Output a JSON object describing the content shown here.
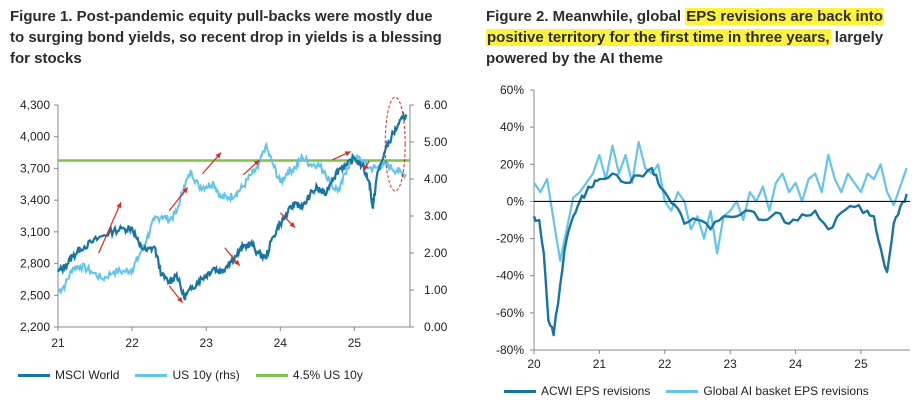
{
  "figure1": {
    "title_lines": [
      "Figure 1. Post-pandemic equity pull-backs were mostly due",
      "to surging bond yields, so recent drop in yields is a blessing",
      "for stocks"
    ],
    "legend": [
      "MSCI World",
      "US 10y (rhs)",
      "4.5% US 10y"
    ]
  },
  "figure2": {
    "title_line1_pre": "Figure 2. Meanwhile, global ",
    "title_line1_hl": "EPS revisions are back into",
    "title_line2_hl": "positive territory for the first time in three years,",
    "title_line2_post": " largely",
    "title_line3": "powered by the AI theme",
    "legend": [
      "ACWI EPS revisions",
      "Global AI basket EPS revisions"
    ]
  },
  "colors": {
    "dark": "#1874a3",
    "light": "#63c4ec",
    "green": "#7dc24b",
    "arrow": "#e1261c",
    "axis": "#888888"
  },
  "chart_data": [
    {
      "type": "line",
      "title": "Figure 1. Post-pandemic equity pull-backs were mostly due to surging bond yields, so recent drop in yields is a blessing for stocks",
      "x_ticks": [
        "21",
        "22",
        "23",
        "24",
        "25"
      ],
      "xlim": [
        2021.0,
        2025.75
      ],
      "y_left_ticks": [
        "2,200",
        "2,500",
        "2,800",
        "3,100",
        "3,400",
        "3,700",
        "4,000",
        "4,300"
      ],
      "ylim_left": [
        2200,
        4300
      ],
      "y_right_ticks": [
        "0.00",
        "1.00",
        "2.00",
        "3.00",
        "4.00",
        "5.00",
        "6.00"
      ],
      "ylim_right": [
        0,
        6
      ],
      "series": [
        {
          "name": "MSCI World",
          "axis": "left",
          "x": [
            2021.0,
            2021.1,
            2021.2,
            2021.3,
            2021.45,
            2021.6,
            2021.75,
            2021.9,
            2022.0,
            2022.1,
            2022.2,
            2022.3,
            2022.4,
            2022.5,
            2022.6,
            2022.7,
            2022.8,
            2022.9,
            2023.0,
            2023.1,
            2023.2,
            2023.3,
            2023.4,
            2023.5,
            2023.6,
            2023.7,
            2023.8,
            2023.9,
            2024.0,
            2024.1,
            2024.2,
            2024.3,
            2024.4,
            2024.5,
            2024.6,
            2024.7,
            2024.8,
            2024.9,
            2025.0,
            2025.1,
            2025.2,
            2025.25,
            2025.3,
            2025.4,
            2025.5,
            2025.6,
            2025.7
          ],
          "values": [
            2720,
            2780,
            2870,
            2940,
            3000,
            3060,
            3110,
            3130,
            3140,
            2970,
            2920,
            2960,
            2690,
            2620,
            2700,
            2480,
            2560,
            2640,
            2690,
            2760,
            2720,
            2800,
            2870,
            2960,
            2990,
            2900,
            2850,
            3050,
            3180,
            3280,
            3380,
            3330,
            3450,
            3520,
            3450,
            3600,
            3700,
            3730,
            3800,
            3730,
            3580,
            3320,
            3620,
            3840,
            4000,
            4120,
            4210
          ]
        },
        {
          "name": "US 10y (rhs)",
          "axis": "right",
          "x": [
            2021.0,
            2021.1,
            2021.2,
            2021.3,
            2021.45,
            2021.6,
            2021.75,
            2021.9,
            2022.0,
            2022.1,
            2022.2,
            2022.3,
            2022.4,
            2022.5,
            2022.6,
            2022.7,
            2022.8,
            2022.9,
            2023.0,
            2023.1,
            2023.2,
            2023.3,
            2023.4,
            2023.5,
            2023.6,
            2023.7,
            2023.8,
            2023.9,
            2024.0,
            2024.1,
            2024.2,
            2024.3,
            2024.4,
            2024.5,
            2024.6,
            2024.7,
            2024.8,
            2024.9,
            2025.0,
            2025.1,
            2025.2,
            2025.3,
            2025.4,
            2025.5,
            2025.6,
            2025.7
          ],
          "values": [
            0.95,
            1.15,
            1.6,
            1.65,
            1.5,
            1.3,
            1.5,
            1.5,
            1.55,
            1.95,
            2.4,
            2.9,
            3.0,
            2.9,
            3.1,
            3.8,
            4.2,
            3.8,
            3.8,
            3.9,
            3.5,
            3.5,
            3.6,
            3.8,
            4.1,
            4.3,
            4.9,
            4.4,
            3.9,
            4.2,
            4.3,
            4.6,
            4.4,
            4.4,
            4.2,
            3.8,
            3.7,
            4.3,
            4.6,
            4.5,
            4.3,
            4.3,
            4.4,
            4.3,
            4.2,
            4.1
          ]
        },
        {
          "name": "4.5% US 10y",
          "axis": "right",
          "x": [
            2021.0,
            2025.75
          ],
          "values": [
            4.5,
            4.5
          ]
        }
      ]
    },
    {
      "type": "line",
      "title": "Figure 2. Meanwhile, global EPS revisions are back into positive territory for the first time in three years, largely powered by the AI theme",
      "x_ticks": [
        "20",
        "21",
        "22",
        "23",
        "24",
        "25"
      ],
      "xlim": [
        2020.0,
        2025.75
      ],
      "y_ticks": [
        "-80%",
        "-60%",
        "-40%",
        "-20%",
        "0%",
        "20%",
        "40%",
        "60%"
      ],
      "ylim": [
        -80,
        60
      ],
      "series": [
        {
          "name": "ACWI EPS revisions",
          "x": [
            2020.0,
            2020.08,
            2020.15,
            2020.22,
            2020.3,
            2020.4,
            2020.5,
            2020.6,
            2020.7,
            2020.8,
            2020.9,
            2021.0,
            2021.2,
            2021.4,
            2021.6,
            2021.8,
            2021.9,
            2022.0,
            2022.15,
            2022.3,
            2022.5,
            2022.7,
            2022.9,
            2023.1,
            2023.3,
            2023.5,
            2023.7,
            2023.9,
            2024.1,
            2024.3,
            2024.5,
            2024.7,
            2024.9,
            2025.1,
            2025.2,
            2025.3,
            2025.4,
            2025.5,
            2025.6,
            2025.7
          ],
          "values": [
            -8,
            -10,
            -28,
            -64,
            -72,
            -45,
            -20,
            -8,
            0,
            5,
            8,
            12,
            15,
            10,
            14,
            18,
            10,
            5,
            -2,
            -12,
            -10,
            -15,
            -8,
            -8,
            -5,
            -10,
            -6,
            -12,
            -7,
            -5,
            -15,
            -6,
            -3,
            -5,
            -8,
            -25,
            -38,
            -12,
            -3,
            4
          ]
        },
        {
          "name": "Global AI basket EPS revisions",
          "x": [
            2020.0,
            2020.1,
            2020.2,
            2020.3,
            2020.4,
            2020.5,
            2020.6,
            2020.7,
            2020.8,
            2020.9,
            2021.0,
            2021.1,
            2021.2,
            2021.3,
            2021.4,
            2021.5,
            2021.6,
            2021.7,
            2021.8,
            2021.9,
            2022.0,
            2022.1,
            2022.2,
            2022.3,
            2022.4,
            2022.5,
            2022.6,
            2022.7,
            2022.8,
            2022.9,
            2023.0,
            2023.1,
            2023.2,
            2023.3,
            2023.4,
            2023.5,
            2023.6,
            2023.7,
            2023.8,
            2023.9,
            2024.0,
            2024.1,
            2024.2,
            2024.3,
            2024.4,
            2024.5,
            2024.6,
            2024.7,
            2024.8,
            2024.9,
            2025.0,
            2025.1,
            2025.2,
            2025.3,
            2025.4,
            2025.5,
            2025.6,
            2025.7
          ],
          "values": [
            10,
            5,
            12,
            -10,
            -32,
            -15,
            2,
            5,
            10,
            15,
            25,
            12,
            30,
            15,
            25,
            10,
            32,
            18,
            15,
            20,
            0,
            -5,
            5,
            0,
            -15,
            -8,
            -20,
            -5,
            -28,
            -8,
            -5,
            0,
            -10,
            5,
            0,
            8,
            -5,
            10,
            15,
            5,
            10,
            0,
            12,
            15,
            5,
            25,
            12,
            5,
            15,
            10,
            5,
            15,
            12,
            20,
            5,
            -2,
            8,
            18
          ]
        }
      ]
    }
  ]
}
